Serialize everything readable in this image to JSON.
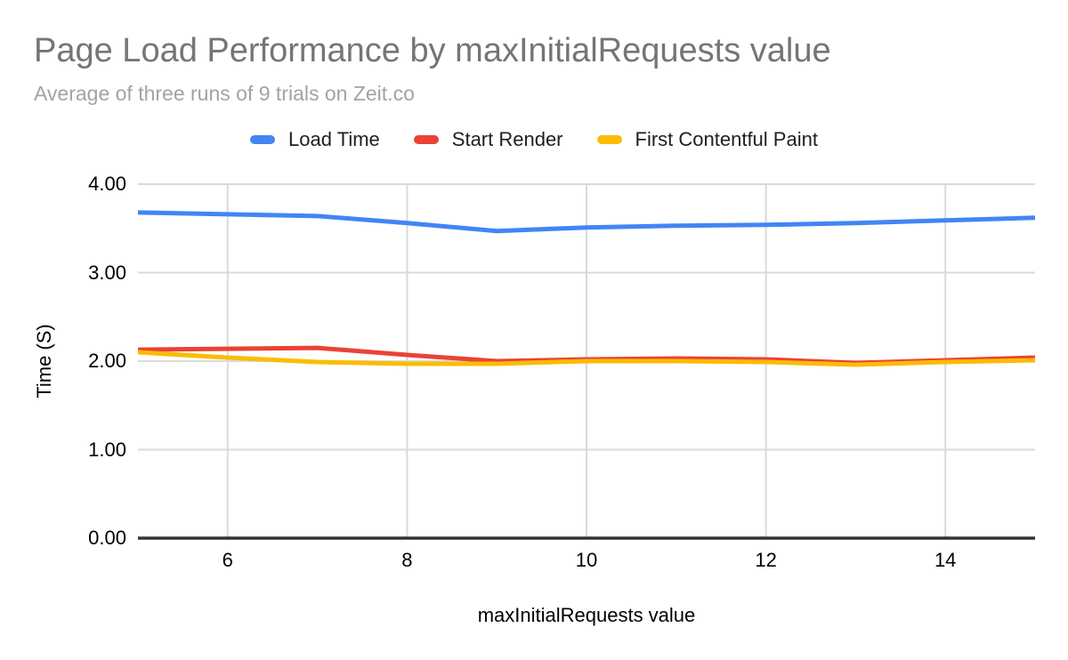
{
  "chart_data": {
    "type": "line",
    "title": "Page Load Performance by maxInitialRequests value",
    "subtitle": "Average of three runs of 9 trials on Zeit.co",
    "xlabel": "maxInitialRequests value",
    "ylabel": "Time (S)",
    "xlim": [
      5,
      15
    ],
    "ylim": [
      0,
      4
    ],
    "legend_position": "top",
    "grid": true,
    "x": [
      5,
      6,
      7,
      8,
      9,
      10,
      11,
      12,
      13,
      14,
      15
    ],
    "series": [
      {
        "name": "Load Time",
        "color": "#4285f4",
        "values": [
          3.68,
          3.66,
          3.64,
          3.56,
          3.47,
          3.51,
          3.53,
          3.54,
          3.56,
          3.59,
          3.62
        ]
      },
      {
        "name": "Start Render",
        "color": "#ea4335",
        "values": [
          2.13,
          2.14,
          2.15,
          2.07,
          2.0,
          2.02,
          2.03,
          2.02,
          1.98,
          2.01,
          2.04
        ]
      },
      {
        "name": "First Contentful Paint",
        "color": "#fbbc04",
        "values": [
          2.1,
          2.04,
          1.99,
          1.97,
          1.97,
          2.0,
          2.0,
          1.99,
          1.96,
          1.99,
          2.01
        ]
      }
    ],
    "yticks": [
      {
        "value": 0,
        "label": "0.00"
      },
      {
        "value": 1,
        "label": "1.00"
      },
      {
        "value": 2,
        "label": "2.00"
      },
      {
        "value": 3,
        "label": "3.00"
      },
      {
        "value": 4,
        "label": "4.00"
      }
    ],
    "xticks": [
      {
        "value": 6,
        "label": "6"
      },
      {
        "value": 8,
        "label": "8"
      },
      {
        "value": 10,
        "label": "10"
      },
      {
        "value": 12,
        "label": "12"
      },
      {
        "value": 14,
        "label": "14"
      }
    ],
    "colors": {
      "background": "#ffffff",
      "title": "#757575",
      "subtitle": "#a3a3a3",
      "grid": "#dadada",
      "axis": "#333333",
      "tick_text": "#000000"
    }
  }
}
